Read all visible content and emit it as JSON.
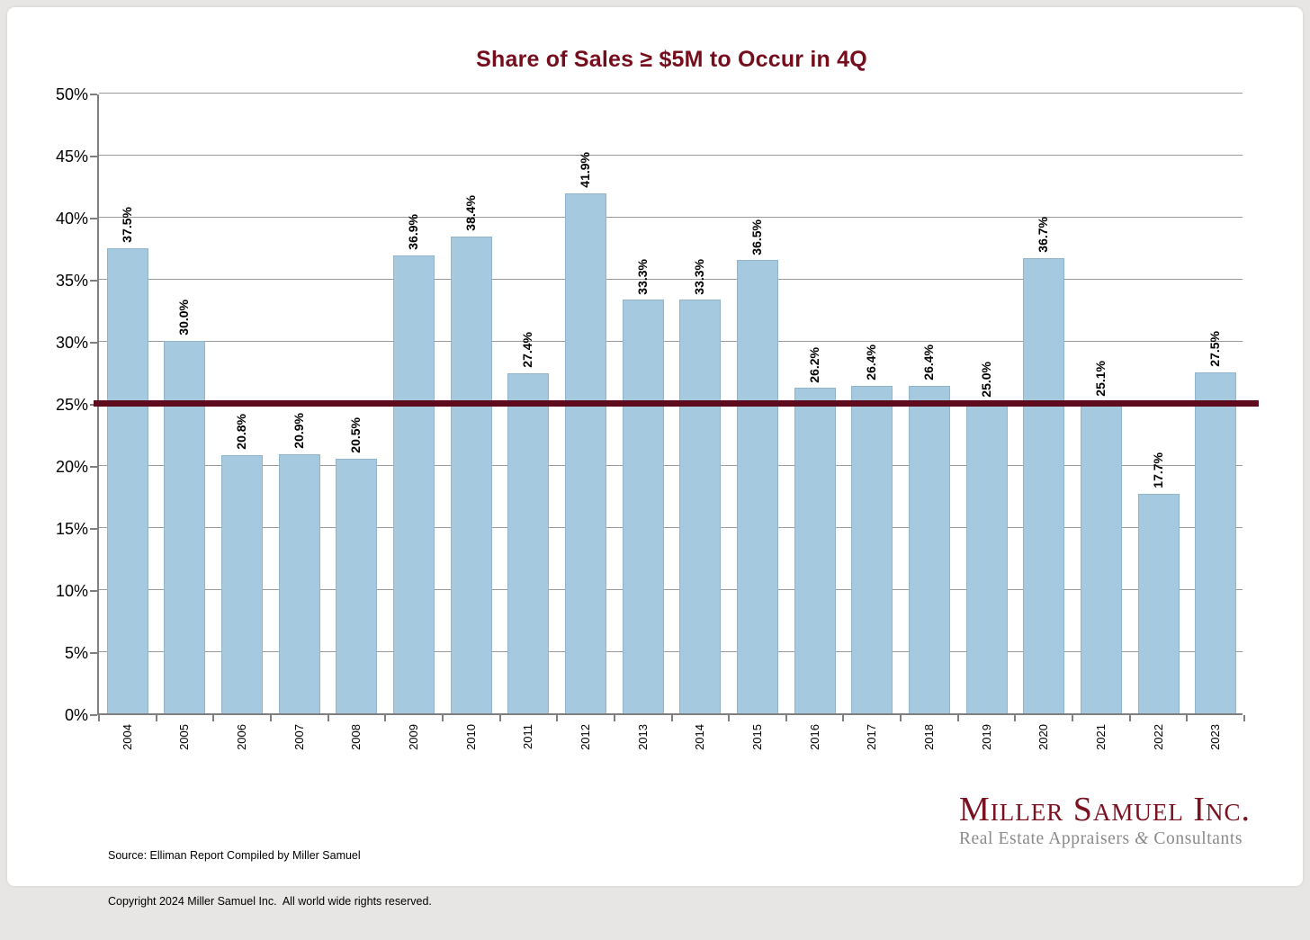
{
  "chart_data": {
    "type": "bar",
    "title": "Share of Sales ≥ $5M to Occur in 4Q",
    "categories": [
      "2004",
      "2005",
      "2006",
      "2007",
      "2008",
      "2009",
      "2010",
      "2011",
      "2012",
      "2013",
      "2014",
      "2015",
      "2016",
      "2017",
      "2018",
      "2019",
      "2020",
      "2021",
      "2022",
      "2023"
    ],
    "values": [
      37.5,
      30.0,
      20.8,
      20.9,
      20.5,
      36.9,
      38.4,
      27.4,
      41.9,
      33.3,
      33.3,
      36.5,
      26.2,
      26.4,
      26.4,
      25.0,
      36.7,
      25.1,
      17.7,
      27.5
    ],
    "value_label_suffix": "%",
    "xlabel": "",
    "ylabel": "",
    "ylim": [
      0,
      50
    ],
    "ytick_step": 5,
    "ytick_suffix": "%",
    "grid": true,
    "legend": "none",
    "bar_color": "#a5c9df",
    "bar_border_color": "#8fb4cc",
    "reference_line": {
      "value": 25,
      "color": "#5e0c1d"
    },
    "label_rotation_degrees": 90
  },
  "footer": {
    "source_line1": "Source: Elliman Report Compiled by Miller Samuel",
    "source_line2": "Copyright 2024 Miller Samuel Inc.  All world wide rights reserved."
  },
  "logo": {
    "name": "Miller Samuel Inc.",
    "tagline_pre": "Real Estate Appraisers ",
    "tagline_amp": "&",
    "tagline_post": " Consultants"
  },
  "colors": {
    "title": "#760d1d",
    "logo_maroon": "#7a1120",
    "logo_gray": "#8a8a8a",
    "page_background": "#e7e6e4",
    "card_background": "#ffffff"
  }
}
